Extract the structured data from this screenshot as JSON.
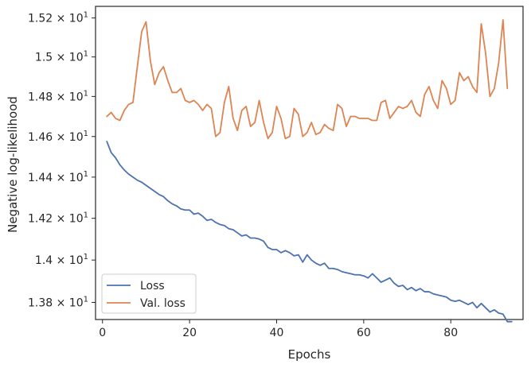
{
  "chart_data": {
    "type": "line",
    "title": "",
    "xlabel": "Epochs",
    "ylabel": "Negative log-likelihood",
    "xlim": [
      -1.6,
      96.6
    ],
    "ylim": [
      13.72,
      15.26
    ],
    "y_scale": "log",
    "grid": false,
    "legend_position": "lower-left",
    "x_ticks": [
      0,
      20,
      40,
      60,
      80
    ],
    "x_tick_labels": [
      "0",
      "20",
      "40",
      "60",
      "80"
    ],
    "y_ticks": [
      13.8,
      14.0,
      14.2,
      14.4,
      14.6,
      14.8,
      15.0,
      15.2
    ],
    "y_tick_labels": [
      {
        "mantissa": "1.38",
        "exp": "1"
      },
      {
        "mantissa": "1.4",
        "exp": "1"
      },
      {
        "mantissa": "1.42",
        "exp": "1"
      },
      {
        "mantissa": "1.44",
        "exp": "1"
      },
      {
        "mantissa": "1.46",
        "exp": "1"
      },
      {
        "mantissa": "1.48",
        "exp": "1"
      },
      {
        "mantissa": "1.5",
        "exp": "1"
      },
      {
        "mantissa": "1.52",
        "exp": "1"
      }
    ],
    "tick_times": "×",
    "tick_base": "10",
    "series": [
      {
        "name": "Loss",
        "color": "#4c72b0",
        "x_start": 1,
        "values": [
          14.575,
          14.52,
          14.495,
          14.46,
          14.435,
          14.415,
          14.4,
          14.385,
          14.375,
          14.36,
          14.345,
          14.33,
          14.315,
          14.305,
          14.285,
          14.27,
          14.26,
          14.245,
          14.24,
          14.24,
          14.22,
          14.225,
          14.21,
          14.19,
          14.195,
          14.18,
          14.17,
          14.165,
          14.15,
          14.145,
          14.13,
          14.115,
          14.12,
          14.105,
          14.105,
          14.1,
          14.09,
          14.06,
          14.05,
          14.05,
          14.035,
          14.045,
          14.035,
          14.02,
          14.025,
          13.99,
          14.025,
          14.0,
          13.985,
          13.975,
          13.985,
          13.96,
          13.96,
          13.955,
          13.945,
          13.94,
          13.935,
          13.93,
          13.93,
          13.925,
          13.915,
          13.935,
          13.915,
          13.895,
          13.905,
          13.915,
          13.89,
          13.875,
          13.88,
          13.86,
          13.87,
          13.855,
          13.865,
          13.85,
          13.85,
          13.84,
          13.835,
          13.83,
          13.825,
          13.81,
          13.805,
          13.81,
          13.8,
          13.79,
          13.8,
          13.775,
          13.795,
          13.775,
          13.755,
          13.765,
          13.75,
          13.745,
          13.71,
          13.71
        ]
      },
      {
        "name": "Val. loss",
        "color": "#dd8452",
        "x_start": 1,
        "values": [
          14.7,
          14.72,
          14.69,
          14.68,
          14.73,
          14.76,
          14.77,
          14.95,
          15.13,
          15.18,
          14.98,
          14.86,
          14.92,
          14.95,
          14.88,
          14.82,
          14.82,
          14.84,
          14.78,
          14.77,
          14.78,
          14.76,
          14.73,
          14.76,
          14.74,
          14.6,
          14.62,
          14.77,
          14.85,
          14.69,
          14.63,
          14.73,
          14.75,
          14.65,
          14.67,
          14.78,
          14.67,
          14.59,
          14.62,
          14.75,
          14.69,
          14.59,
          14.6,
          14.74,
          14.71,
          14.6,
          14.62,
          14.67,
          14.61,
          14.62,
          14.66,
          14.64,
          14.63,
          14.76,
          14.74,
          14.65,
          14.7,
          14.7,
          14.69,
          14.69,
          14.69,
          14.68,
          14.68,
          14.77,
          14.78,
          14.69,
          14.72,
          14.75,
          14.74,
          14.75,
          14.78,
          14.72,
          14.7,
          14.81,
          14.85,
          14.78,
          14.74,
          14.88,
          14.84,
          14.76,
          14.78,
          14.92,
          14.88,
          14.9,
          14.85,
          14.82,
          15.17,
          15.02,
          14.8,
          14.84,
          14.97,
          15.19,
          14.84
        ]
      }
    ]
  }
}
